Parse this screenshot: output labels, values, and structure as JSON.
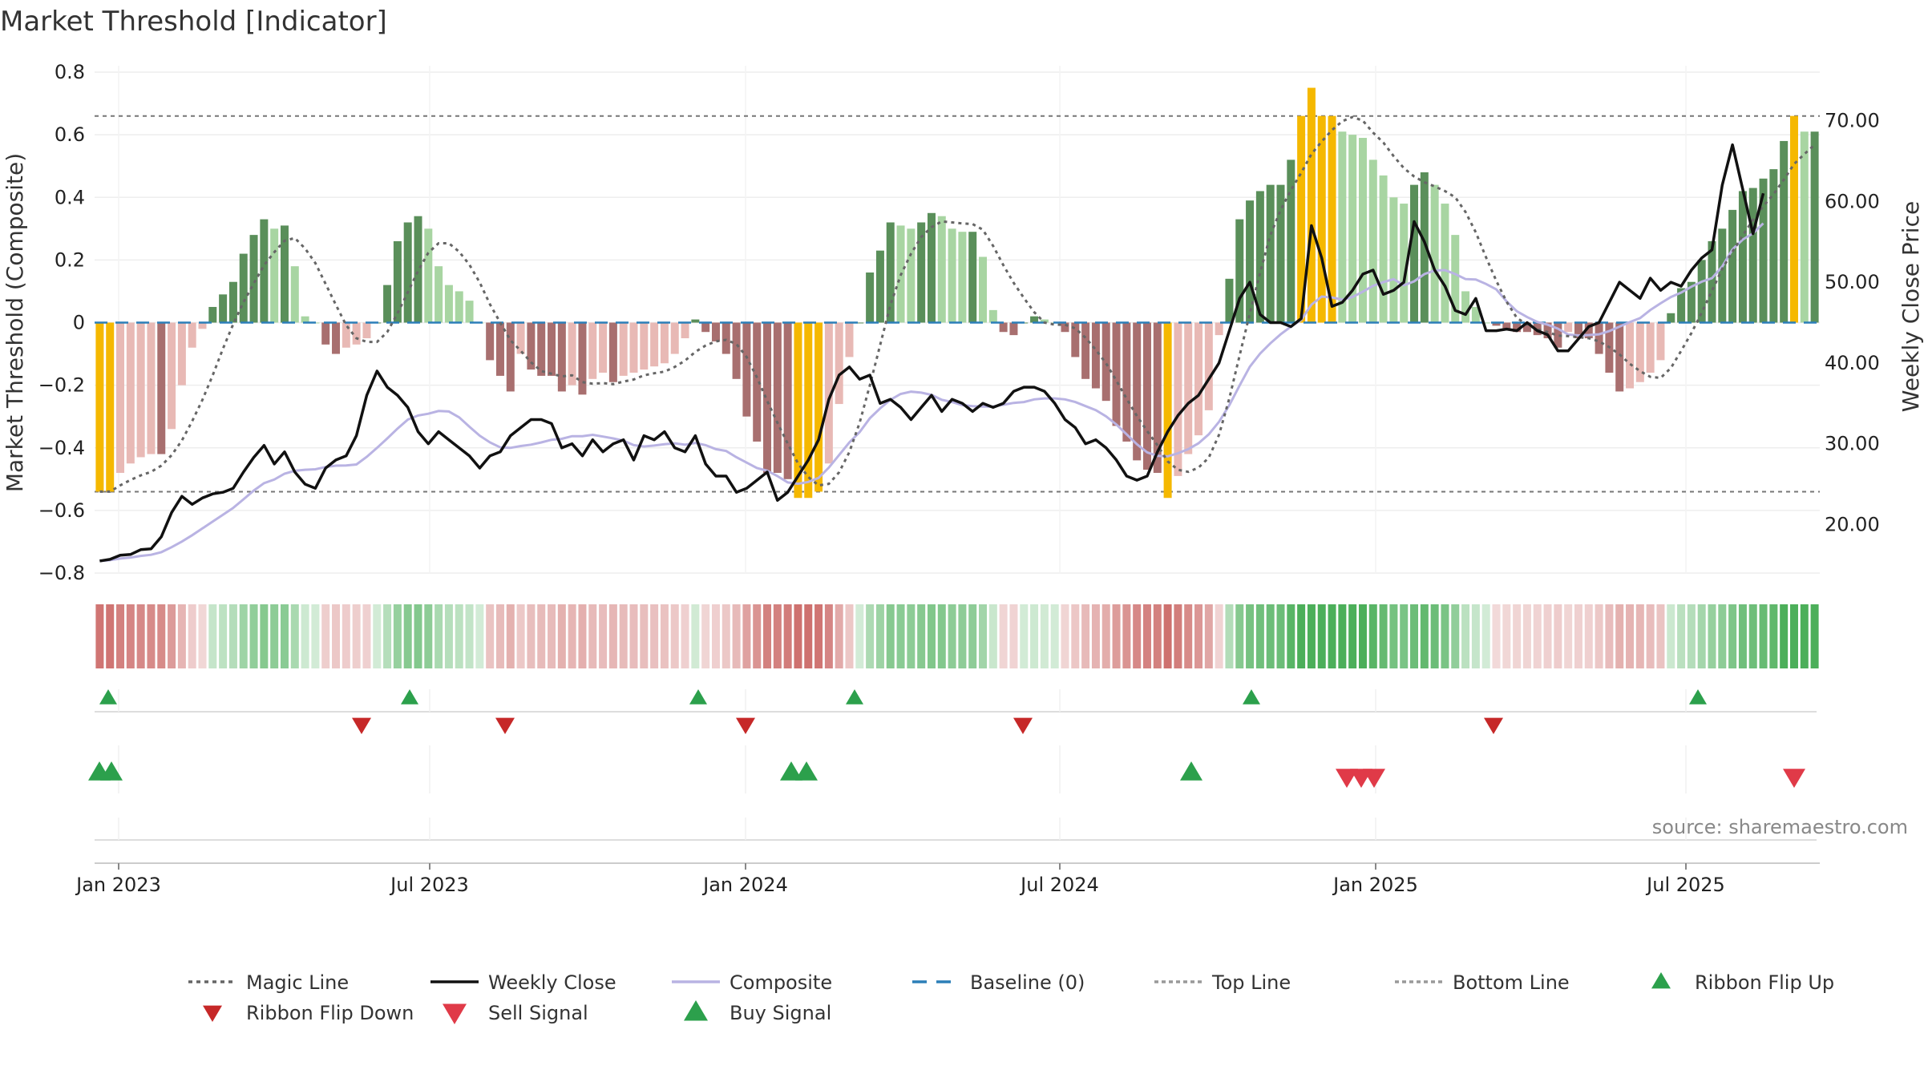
{
  "chart_data": {
    "type": "bar",
    "title": "Market Threshold [Indicator]",
    "ylabel": "Market Threshold (Composite)",
    "y2label": "Weekly Close Price",
    "ylim": [
      -0.8,
      0.8
    ],
    "y2lim": [
      14.0,
      76.0
    ],
    "yticks": [
      "0.8",
      "0.6",
      "0.4",
      "0.2",
      "0",
      "−0.2",
      "−0.4",
      "−0.6",
      "−0.8"
    ],
    "y2ticks": [
      "70.00",
      "60.00",
      "50.00",
      "40.00",
      "30.00",
      "20.00"
    ],
    "xticks": [
      "Jan 2023",
      "Jul 2023",
      "Jan 2024",
      "Jul 2024",
      "Jan 2025",
      "Jul 2025"
    ],
    "top_line": 0.66,
    "bottom_line": -0.54,
    "source": "source: sharemaestro.com",
    "colors": {
      "strong_pos": "#5a8f5a",
      "weak_pos": "#a8d5a2",
      "strong_neg": "#a86f6f",
      "weak_neg": "#e8b9b5",
      "extreme": "#f5b800",
      "close": "#111111",
      "composite": "#b9b3e3",
      "magic": "#666666",
      "baseline": "#2c7fb8",
      "buy": "#2ca04c",
      "sell": "#d62728"
    },
    "histogram": [
      -0.54,
      -0.54,
      -0.48,
      -0.45,
      -0.43,
      -0.42,
      -0.42,
      -0.34,
      -0.2,
      -0.08,
      -0.02,
      0.05,
      0.09,
      0.13,
      0.22,
      0.28,
      0.33,
      0.3,
      0.31,
      0.18,
      0.02,
      0.0,
      -0.07,
      -0.1,
      -0.08,
      -0.07,
      -0.05,
      0.0,
      0.12,
      0.26,
      0.32,
      0.34,
      0.3,
      0.18,
      0.12,
      0.1,
      0.07,
      0.0,
      -0.12,
      -0.17,
      -0.22,
      -0.1,
      -0.15,
      -0.17,
      -0.17,
      -0.22,
      -0.2,
      -0.23,
      -0.18,
      -0.16,
      -0.19,
      -0.17,
      -0.16,
      -0.15,
      -0.14,
      -0.13,
      -0.1,
      -0.05,
      0.01,
      -0.03,
      -0.06,
      -0.1,
      -0.18,
      -0.3,
      -0.38,
      -0.48,
      -0.48,
      -0.5,
      -0.56,
      -0.56,
      -0.54,
      -0.45,
      -0.26,
      -0.11,
      0.0,
      0.16,
      0.23,
      0.32,
      0.31,
      0.3,
      0.32,
      0.35,
      0.34,
      0.3,
      0.29,
      0.29,
      0.21,
      0.04,
      -0.03,
      -0.04,
      0.0,
      0.02,
      0.01,
      0.0,
      -0.03,
      -0.11,
      -0.18,
      -0.21,
      -0.25,
      -0.33,
      -0.38,
      -0.44,
      -0.47,
      -0.48,
      -0.56,
      -0.49,
      -0.42,
      -0.36,
      -0.28,
      -0.04,
      0.14,
      0.33,
      0.39,
      0.42,
      0.44,
      0.44,
      0.52,
      0.66,
      0.75,
      0.66,
      0.66,
      0.61,
      0.6,
      0.59,
      0.52,
      0.47,
      0.4,
      0.38,
      0.44,
      0.48,
      0.44,
      0.38,
      0.28,
      0.1,
      0.05,
      0.0,
      -0.01,
      -0.02,
      -0.03,
      -0.03,
      -0.04,
      -0.05,
      -0.08,
      -0.03,
      -0.05,
      -0.05,
      -0.1,
      -0.16,
      -0.22,
      -0.21,
      -0.19,
      -0.16,
      -0.12,
      0.03,
      0.11,
      0.13,
      0.2,
      0.26,
      0.3,
      0.36,
      0.42,
      0.43,
      0.46,
      0.49,
      0.58,
      0.66,
      0.61,
      0.61
    ],
    "close": [
      15.5,
      15.7,
      16.2,
      16.3,
      16.9,
      17.0,
      18.5,
      21.5,
      23.5,
      22.5,
      23.3,
      23.8,
      24.0,
      24.5,
      26.5,
      28.3,
      29.8,
      27.5,
      29.0,
      26.5,
      25.0,
      24.5,
      27.0,
      28.0,
      28.5,
      31.0,
      36.0,
      39.0,
      37.0,
      36.0,
      34.5,
      31.5,
      30.0,
      31.5,
      30.5,
      29.5,
      28.5,
      27.0,
      28.5,
      29.0,
      31.0,
      32.0,
      33.0,
      33.0,
      32.5,
      29.5,
      30.0,
      28.5,
      30.5,
      29.0,
      30.0,
      30.5,
      28.0,
      31.0,
      30.5,
      31.5,
      29.5,
      29.0,
      31.0,
      27.5,
      26.0,
      26.0,
      24.0,
      24.5,
      25.5,
      26.5,
      23.0,
      24.0,
      26.0,
      28.0,
      30.5,
      35.5,
      38.5,
      39.5,
      38.0,
      38.5,
      35.0,
      35.5,
      34.5,
      33.0,
      34.5,
      36.0,
      34.0,
      35.5,
      35.0,
      34.0,
      35.0,
      34.5,
      35.0,
      36.5,
      37.0,
      37.0,
      36.5,
      35.0,
      33.0,
      32.0,
      30.0,
      30.5,
      29.5,
      28.0,
      26.0,
      25.5,
      26.0,
      29.0,
      31.5,
      33.5,
      35.0,
      36.0,
      38.0,
      40.0,
      44.0,
      48.0,
      50.0,
      46.0,
      45.0,
      45.0,
      44.5,
      45.5,
      57.0,
      53.0,
      47.0,
      47.5,
      49.0,
      51.0,
      51.5,
      48.5,
      49.0,
      50.0,
      57.5,
      55.0,
      51.5,
      49.5,
      46.5,
      46.0,
      48.0,
      44.0,
      44.0,
      44.2,
      44.0,
      45.0,
      44.0,
      43.5,
      41.5,
      41.5,
      43.0,
      44.5,
      45.0,
      47.5,
      50.0,
      49.0,
      48.0,
      50.5,
      49.0,
      50.0,
      49.5,
      51.5,
      53.0,
      54.0,
      62.0,
      67.0,
      61.5,
      56.0,
      61.0
    ],
    "ribbon_flip_up": [
      "2023-01",
      "2023-07",
      "2023-12",
      "2024-03",
      "2024-11",
      "2025-07"
    ],
    "ribbon_flip_down": [
      "2023-05",
      "2023-08",
      "2024-01",
      "2024-06",
      "2025-03"
    ],
    "buy_signal": [
      "2022-12",
      "2022-12",
      "2024-01",
      "2024-02",
      "2024-10"
    ],
    "sell_signal": [
      "2024-12",
      "2024-12",
      "2025-01",
      "2025-09"
    ],
    "legend": [
      "Magic Line",
      "Weekly Close",
      "Composite",
      "Baseline (0)",
      "Top Line",
      "Bottom Line",
      "Ribbon Flip Up",
      "Ribbon Flip Down",
      "Sell Signal",
      "Buy Signal"
    ]
  }
}
